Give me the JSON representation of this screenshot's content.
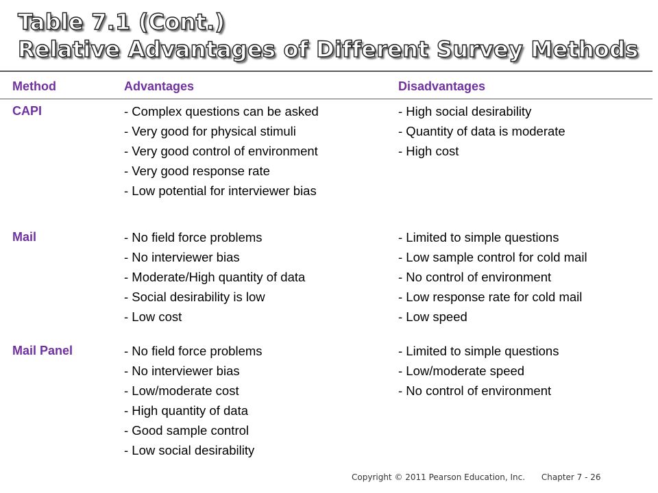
{
  "slide": {
    "title_line1": "Table 7.1 (Cont.)",
    "title_line2": "Relative Advantages of Different Survey Methods"
  },
  "table": {
    "headers": {
      "method": "Method",
      "advantages": "Advantages",
      "disadvantages": "Disadvantages"
    },
    "rows": [
      {
        "method": "CAPI",
        "advantages": [
          "- Complex questions can be asked",
          "- Very good for physical stimuli",
          "- Very good control of environment",
          "- Very good response rate",
          "- Low potential for interviewer bias"
        ],
        "disadvantages": [
          "- High social desirability",
          "- Quantity of data is moderate",
          "- High cost"
        ]
      },
      {
        "method": "Mail",
        "advantages": [
          "- No field force problems",
          "- No interviewer bias",
          "- Moderate/High quantity of data",
          "- Social desirability is low",
          "- Low cost"
        ],
        "disadvantages": [
          "- Limited to simple questions",
          "- Low sample control for cold mail",
          "- No control of environment",
          "- Low response rate for cold mail",
          "- Low speed"
        ]
      },
      {
        "method": "Mail Panel",
        "advantages": [
          "- No field force problems",
          "- No interviewer bias",
          "- Low/moderate cost",
          "- High quantity of data",
          "- Good sample control",
          "- Low social desirability"
        ],
        "disadvantages": [
          "- Limited to simple questions",
          "- Low/moderate speed",
          "- No control of environment"
        ]
      }
    ]
  },
  "footer": {
    "copyright": "Copyright © 2011 Pearson Education, Inc.",
    "chapter": "Chapter 7 - 26"
  },
  "colors": {
    "accent": "#7030a0",
    "rule": "#5a5a5a"
  }
}
